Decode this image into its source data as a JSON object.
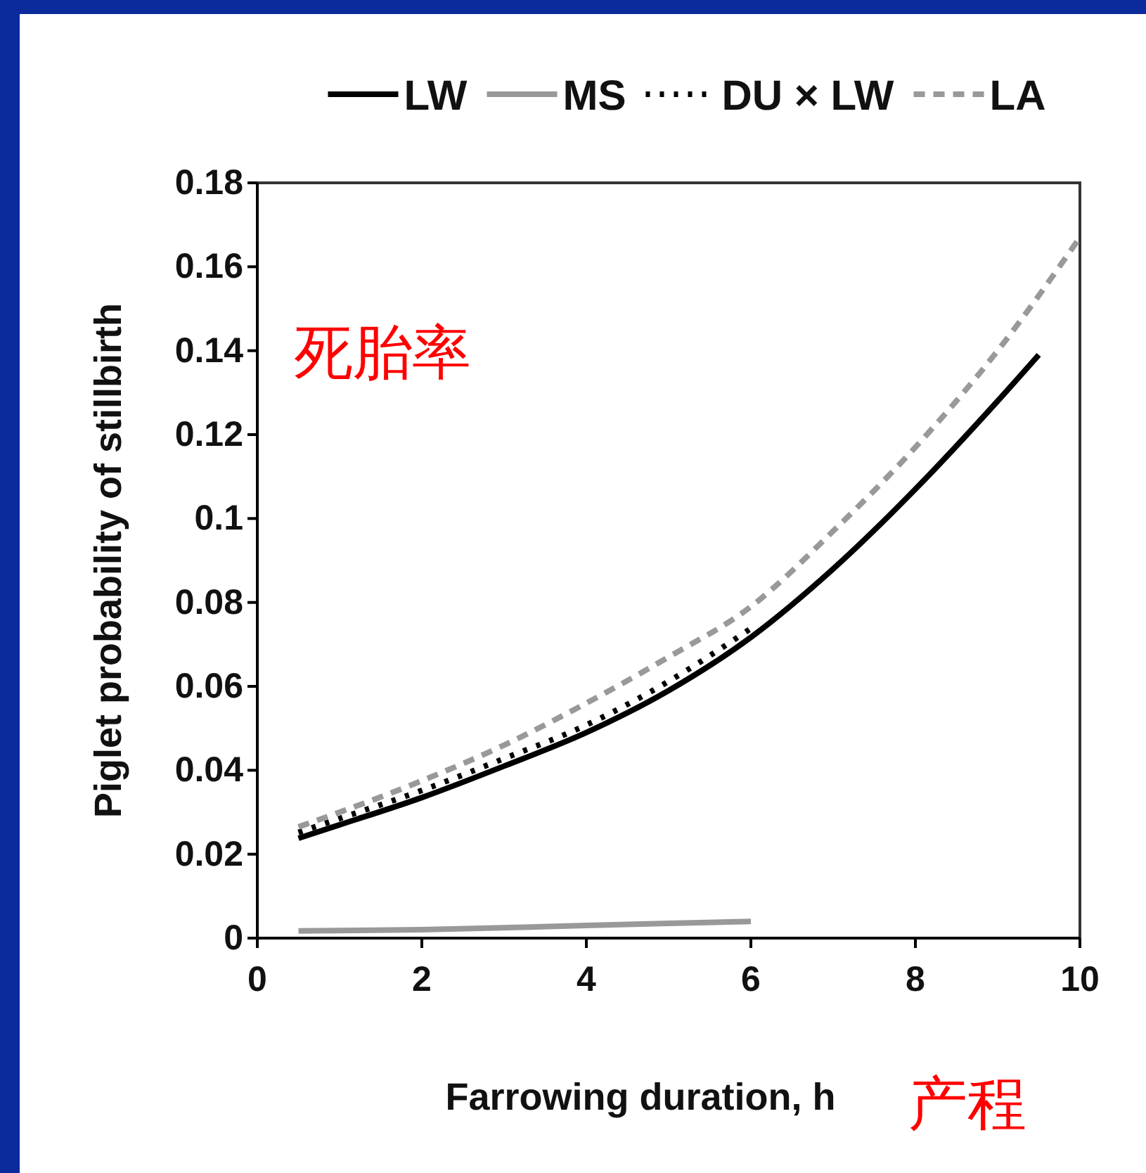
{
  "chart_data": {
    "type": "line",
    "xlabel": "Farrowing duration, h",
    "ylabel": "Piglet probability of stillbirth",
    "xlim": [
      0,
      10
    ],
    "xticks": [
      0,
      2,
      4,
      6,
      8,
      10
    ],
    "ylim": [
      0,
      0.18
    ],
    "yticks": [
      0,
      0.02,
      0.04,
      0.06,
      0.08,
      0.1,
      0.12,
      0.14,
      0.16,
      0.18
    ],
    "grid": false,
    "legend": "top",
    "marker": "none",
    "series": [
      {
        "name": "LW",
        "color": "#000000",
        "line_style": "solid",
        "x": [
          0.5,
          1,
          2,
          3,
          4,
          5,
          6,
          7,
          8,
          9,
          9.5
        ],
        "values": [
          0.0238,
          0.027,
          0.0335,
          0.041,
          0.049,
          0.059,
          0.0717,
          0.088,
          0.107,
          0.128,
          0.139
        ]
      },
      {
        "name": "MS",
        "color": "#999999",
        "line_style": "solid",
        "x": [
          0.5,
          2,
          4,
          6
        ],
        "values": [
          0.0017,
          0.002,
          0.003,
          0.004
        ]
      },
      {
        "name": "DU × LW",
        "color": "#000000",
        "line_style": "dotted",
        "x": [
          0.5,
          1,
          2,
          3,
          4,
          5,
          6
        ],
        "values": [
          0.0252,
          0.0285,
          0.0352,
          0.0428,
          0.0508,
          0.0612,
          0.0738
        ]
      },
      {
        "name": "LA",
        "color": "#999999",
        "line_style": "dashed",
        "x": [
          0.5,
          1,
          2,
          3,
          4,
          5,
          6,
          7,
          8,
          9,
          10
        ],
        "values": [
          0.0265,
          0.03,
          0.0375,
          0.046,
          0.056,
          0.067,
          0.079,
          0.097,
          0.117,
          0.14,
          0.167
        ]
      }
    ],
    "annotations": [
      "死胎率",
      "产程"
    ]
  }
}
